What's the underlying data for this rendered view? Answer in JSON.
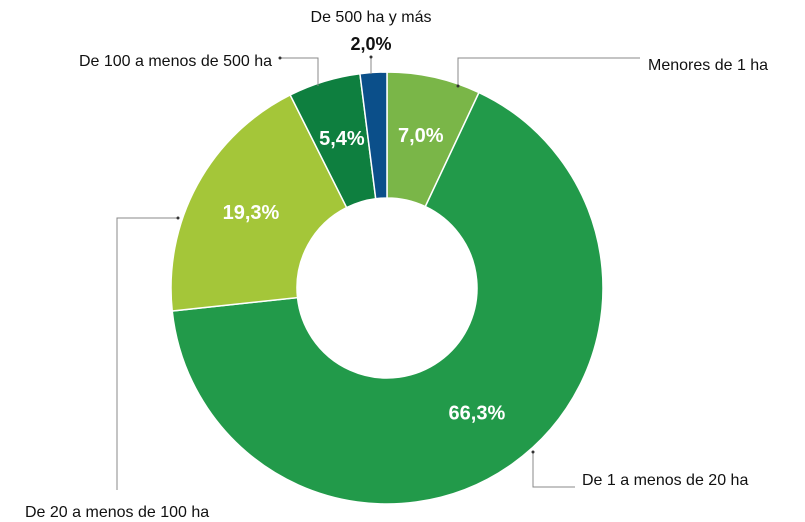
{
  "chart_data": {
    "type": "pie",
    "categories": [
      "Menores de 1 ha",
      "De 1 a menos de 20 ha",
      "De 20 a menos de 100 ha",
      "De 100 a menos de 500 ha",
      "De 500 ha y más"
    ],
    "values": [
      7.0,
      66.3,
      19.3,
      5.4,
      2.0
    ],
    "value_labels": [
      "7,0%",
      "66,3%",
      "19,3%",
      "5,4%",
      "2,0%"
    ],
    "colors": [
      "#7ab648",
      "#229a4a",
      "#a4c639",
      "#0e7f3f",
      "#0b4f8a"
    ]
  }
}
